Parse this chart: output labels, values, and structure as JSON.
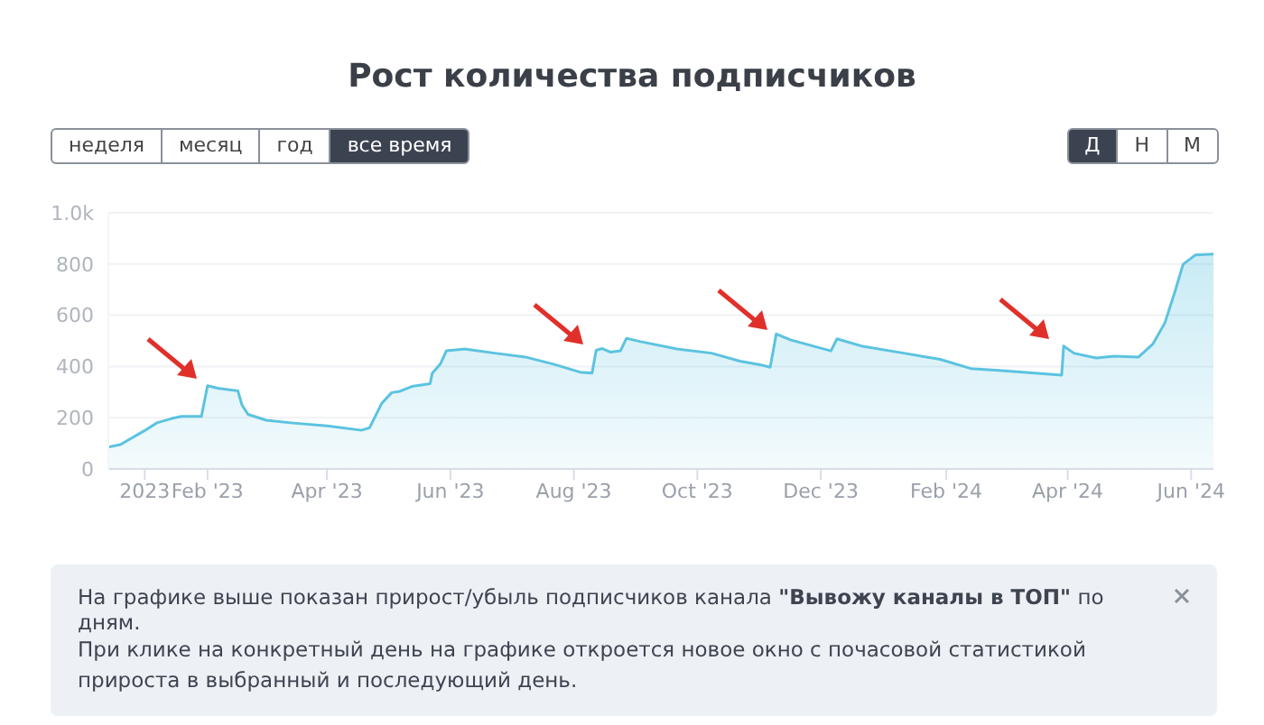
{
  "chart_data": {
    "type": "area",
    "title": "Рост количества подписчиков",
    "x": [
      "2022-12-14",
      "2022-12-20",
      "2023-01-01",
      "2023-01-07",
      "2023-01-14",
      "2023-01-19",
      "2023-01-29",
      "2023-02-01",
      "2023-02-06",
      "2023-02-16",
      "2023-02-18",
      "2023-02-21",
      "2023-03-02",
      "2023-03-14",
      "2023-04-01",
      "2023-04-18",
      "2023-04-22",
      "2023-04-28",
      "2023-05-03",
      "2023-05-07",
      "2023-05-13",
      "2023-05-22",
      "2023-05-23",
      "2023-05-27",
      "2023-05-30",
      "2023-06-08",
      "2023-06-23",
      "2023-07-08",
      "2023-07-22",
      "2023-08-04",
      "2023-08-10",
      "2023-08-12",
      "2023-08-15",
      "2023-08-19",
      "2023-08-24",
      "2023-08-27",
      "2023-09-03",
      "2023-09-21",
      "2023-10-08",
      "2023-10-22",
      "2023-11-01",
      "2023-11-06",
      "2023-11-09",
      "2023-11-16",
      "2023-12-06",
      "2023-12-09",
      "2023-12-21",
      "2024-01-11",
      "2024-01-29",
      "2024-02-13",
      "2024-02-27",
      "2024-03-29",
      "2024-03-30",
      "2024-04-04",
      "2024-04-15",
      "2024-04-24",
      "2024-05-06",
      "2024-05-13",
      "2024-05-19",
      "2024-05-24",
      "2024-05-28",
      "2024-06-03",
      "2024-06-12"
    ],
    "series": [
      {
        "color": "#5bc3e0",
        "values": [
          85,
          95,
          150,
          180,
          196,
          205,
          205,
          325,
          315,
          305,
          250,
          213,
          190,
          180,
          168,
          151,
          160,
          255,
          298,
          303,
          322,
          333,
          373,
          409,
          461,
          468,
          452,
          437,
          409,
          378,
          374,
          463,
          470,
          456,
          461,
          510,
          497,
          468,
          452,
          421,
          407,
          397,
          527,
          504,
          461,
          508,
          480,
          452,
          428,
          392,
          385,
          366,
          480,
          452,
          433,
          440,
          437,
          487,
          570,
          693,
          799,
          835,
          839
        ]
      }
    ],
    "xlim": [
      "2022-12-14",
      "2024-06-12"
    ],
    "xticks": [
      {
        "value": "2023-01-01",
        "label": "2023"
      },
      {
        "value": "2023-02-01",
        "label": "Feb '23"
      },
      {
        "value": "2023-04-01",
        "label": "Apr '23"
      },
      {
        "value": "2023-06-01",
        "label": "Jun '23"
      },
      {
        "value": "2023-08-01",
        "label": "Aug '23"
      },
      {
        "value": "2023-10-01",
        "label": "Oct '23"
      },
      {
        "value": "2023-12-01",
        "label": "Dec '23"
      },
      {
        "value": "2024-02-01",
        "label": "Feb '24"
      },
      {
        "value": "2024-04-01",
        "label": "Apr '24"
      },
      {
        "value": "2024-06-01",
        "label": "Jun '24"
      }
    ],
    "ylim": [
      0,
      1000
    ],
    "yticks": [
      0,
      200,
      400,
      600,
      800,
      {
        "value": 1000,
        "label": "1.0k"
      }
    ],
    "grid": "y",
    "legend": false,
    "marker": "none",
    "annotations": [
      "неделя",
      "месяц",
      "год",
      "все время",
      "Д",
      "Н",
      "М",
      "На графике выше показан прирост/убыль подписчиков канала \"Вывожу каналы в ТОП\" по дням.",
      "При клике на конкретный день на графике откроется новое окно с почасовой статистикой прироста в выбранный и последующий день."
    ]
  }
}
